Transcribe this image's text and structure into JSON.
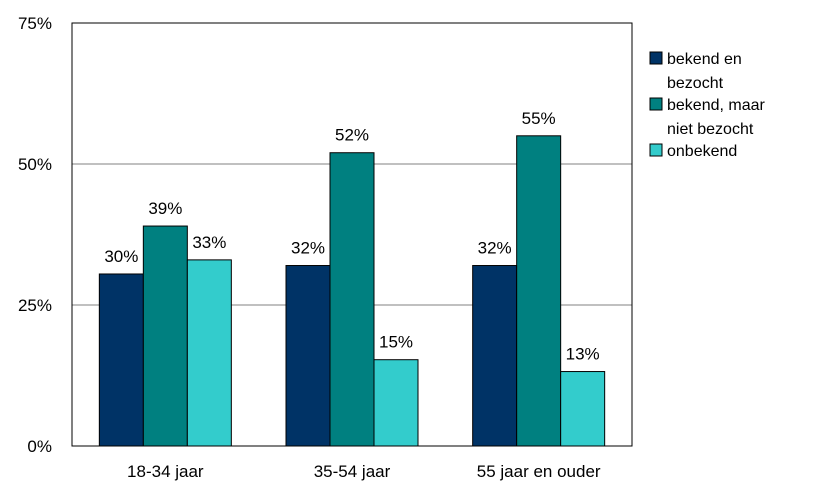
{
  "chart_data": {
    "type": "bar",
    "categories": [
      "18-34 jaar",
      "35-54 jaar",
      "55 jaar en ouder"
    ],
    "series": [
      {
        "name": "bekend en bezocht",
        "legend_lines": [
          "bekend en",
          "bezocht"
        ],
        "color": "#003366",
        "values": [
          30.5,
          32,
          32
        ],
        "labels": [
          "30%",
          "32%",
          "32%"
        ]
      },
      {
        "name": "bekend, maar niet bezocht",
        "legend_lines": [
          "bekend, maar",
          "niet bezocht"
        ],
        "color": "#008080",
        "values": [
          39,
          52,
          55
        ],
        "labels": [
          "39%",
          "52%",
          "55%"
        ]
      },
      {
        "name": "onbekend",
        "legend_lines": [
          "onbekend"
        ],
        "color": "#33CCCC",
        "values": [
          33,
          15.3,
          13.2
        ],
        "labels": [
          "33%",
          "15%",
          "13%"
        ]
      }
    ],
    "ylim": [
      0,
      75
    ],
    "yticks": [
      0,
      25,
      50,
      75
    ],
    "ytick_labels": [
      "0%",
      "25%",
      "50%",
      "75%"
    ],
    "grid": true,
    "legend": "right",
    "title": "",
    "xlabel": "",
    "ylabel": ""
  }
}
